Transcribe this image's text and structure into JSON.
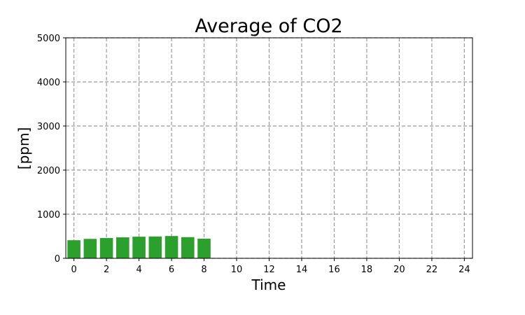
{
  "chart_data": {
    "type": "bar",
    "title": "Average of CO2",
    "xlabel": "Time",
    "ylabel": "[ppm]",
    "x": [
      0,
      1,
      2,
      3,
      4,
      5,
      6,
      7,
      8
    ],
    "values": [
      410,
      440,
      460,
      475,
      490,
      495,
      505,
      480,
      445
    ],
    "xlim": [
      -0.5,
      24.5
    ],
    "ylim": [
      0,
      5000
    ],
    "x_ticks": [
      0,
      2,
      4,
      6,
      8,
      10,
      12,
      14,
      16,
      18,
      20,
      22,
      24
    ],
    "y_ticks": [
      0,
      1000,
      2000,
      3000,
      4000,
      5000
    ],
    "grid": true,
    "legend": "none",
    "bar_color": "#2ca02c",
    "grid_color": "#999999"
  }
}
